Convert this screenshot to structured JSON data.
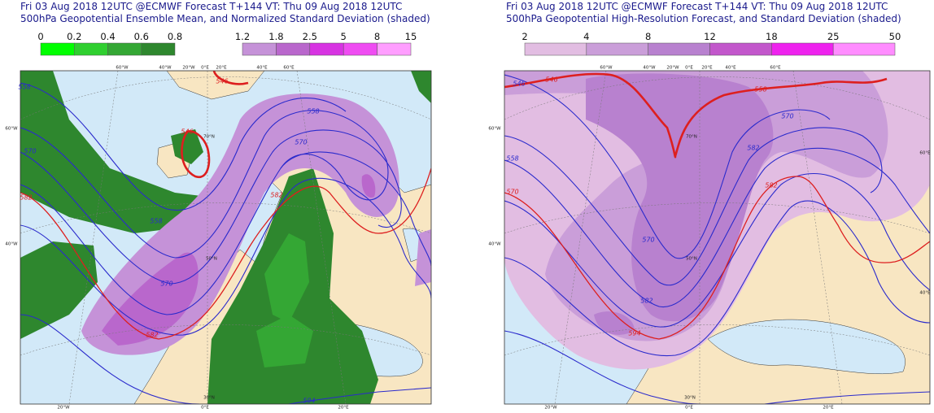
{
  "panels": [
    {
      "title": [
        "Fri 03 Aug 2018 12UTC @ECMWF Forecast T+144 VT: Thu 09 Aug 2018 12UTC",
        "500hPa Geopotential Ensemble Mean, and Normalized Standard Deviation (shaded)"
      ],
      "colorbars": [
        {
          "labels": [
            "0",
            "0.2",
            "0.4",
            "0.6",
            "0.8"
          ],
          "colors": [
            "#00ff00",
            "#2fcf2f",
            "#34a734",
            "#2e872e"
          ]
        },
        {
          "labels": [
            "1.2",
            "1.8",
            "2.5",
            "5",
            "8",
            "15"
          ],
          "colors": [
            "#c592d8",
            "#b967cc",
            "#d733e2",
            "#ef4cf2",
            "#ff9eff"
          ]
        }
      ],
      "contour_labels": [
        "558",
        "546",
        "546",
        "558",
        "570",
        "558",
        "570",
        "582",
        "570",
        "582",
        "582",
        "594"
      ],
      "grid_labels": [
        "60°W",
        "40°W",
        "20°W",
        "0°E",
        "20°E",
        "40°E",
        "60°E",
        "60°W",
        "40°W",
        "70°N",
        "50°N",
        "30°N",
        "20°W",
        "0°E",
        "20°E"
      ]
    },
    {
      "title": [
        "Fri 03 Aug 2018 12UTC @ECMWF Forecast T+144 VT: Thu 09 Aug 2018 12UTC",
        "500hPa Geopotential High-Resolution Forecast, and Standard Deviation (shaded)"
      ],
      "colorbars": [
        {
          "labels": [
            "2",
            "4",
            "8",
            "12",
            "18",
            "25",
            "50"
          ],
          "colors": [
            "#e2bde2",
            "#ca9ed9",
            "#b881cf",
            "#c257cb",
            "#ee22ee",
            "#ff8cff"
          ]
        }
      ],
      "contour_labels": [
        "546",
        "546",
        "558",
        "570",
        "558",
        "570",
        "582",
        "570",
        "582",
        "582",
        "594"
      ],
      "grid_labels": [
        "60°W",
        "40°W",
        "20°W",
        "0°E",
        "20°E",
        "40°E",
        "60°E",
        "60°W",
        "40°W",
        "60°E",
        "40°E",
        "70°N",
        "50°N",
        "30°N",
        "20°W",
        "0°E",
        "20°E"
      ]
    }
  ]
}
